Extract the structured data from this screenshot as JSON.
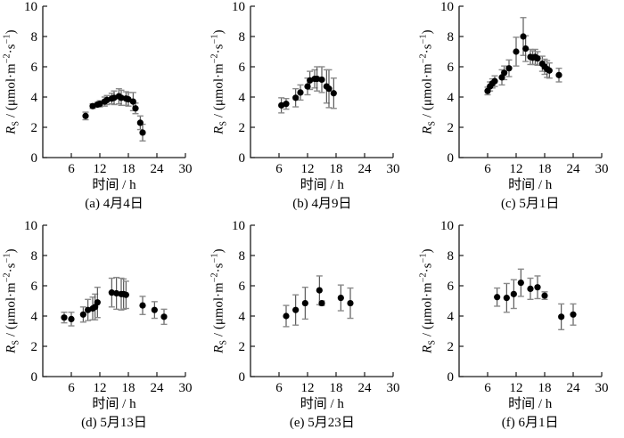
{
  "figure": {
    "background": "#ffffff",
    "axis_color": "#1a1a1a",
    "point_color": "#000000",
    "errorbar_color": "#4a4a4a",
    "errorbar_cap_color": "#8a8a8a"
  },
  "labels": {
    "xlabel": "时间 / h",
    "ylabel_text": "RS / (μmol·m−2·s−1)",
    "ylabel": {
      "var": "R",
      "var_sub": "S",
      "sep": " / (",
      "unit_a": "μmol·m",
      "exp_a": "−2",
      "unit_b": "·s",
      "exp_b": "−1",
      "close": ")"
    }
  },
  "chart_data": [
    {
      "type": "scatter",
      "panel": "a",
      "caption": "(a) 4月4日",
      "xlabel": "时间 / h",
      "ylabel": "RS / (μmol·m−2·s−1)",
      "xlim": [
        0,
        30
      ],
      "ylim": [
        0,
        10
      ],
      "xticks": [
        6,
        12,
        18,
        24,
        30
      ],
      "yticks": [
        0,
        2,
        4,
        6,
        8,
        10
      ],
      "x": [
        9,
        10.5,
        11.5,
        12,
        13,
        13.5,
        14.5,
        15,
        16,
        16.5,
        17.5,
        18,
        19,
        19.5,
        20.5,
        21
      ],
      "y": [
        2.75,
        3.4,
        3.5,
        3.55,
        3.7,
        3.8,
        3.9,
        3.95,
        4.05,
        3.95,
        3.9,
        3.85,
        3.7,
        3.25,
        2.3,
        1.65
      ],
      "yerr": [
        0.25,
        0.15,
        0.15,
        0.2,
        0.3,
        0.3,
        0.35,
        0.45,
        0.5,
        0.5,
        0.45,
        0.45,
        0.6,
        0.35,
        0.45,
        0.55
      ]
    },
    {
      "type": "scatter",
      "panel": "b",
      "caption": "(b) 4月9日",
      "xlabel": "时间 / h",
      "ylabel": "RS / (μmol·m−2·s−1)",
      "xlim": [
        0,
        30
      ],
      "ylim": [
        0,
        10
      ],
      "xticks": [
        6,
        12,
        18,
        24,
        30
      ],
      "yticks": [
        0,
        2,
        4,
        6,
        8,
        10
      ],
      "x": [
        6.5,
        7.5,
        9.5,
        10.5,
        12,
        12.5,
        13.5,
        14,
        15,
        16,
        16.5,
        17.5
      ],
      "y": [
        3.45,
        3.55,
        3.95,
        4.3,
        4.7,
        5.1,
        5.2,
        5.2,
        5.15,
        4.7,
        4.55,
        4.25
      ],
      "yerr": [
        0.5,
        0.35,
        0.6,
        0.5,
        0.55,
        0.6,
        0.6,
        0.8,
        0.85,
        1.1,
        1.25,
        1.0
      ]
    },
    {
      "type": "scatter",
      "panel": "c",
      "caption": "(c) 5月1日",
      "xlabel": "时间 / h",
      "ylabel": "RS / (μmol·m−2·s−1)",
      "xlim": [
        0,
        30
      ],
      "ylim": [
        0,
        10
      ],
      "xticks": [
        6,
        12,
        18,
        24,
        30
      ],
      "yticks": [
        0,
        2,
        4,
        6,
        8,
        10
      ],
      "x": [
        6,
        6.5,
        7,
        7.5,
        9,
        9.5,
        10.5,
        12,
        13.5,
        14,
        15,
        15.5,
        16,
        16.5,
        17.5,
        18,
        18.5,
        19,
        21
      ],
      "y": [
        4.4,
        4.7,
        4.9,
        5.05,
        5.3,
        5.6,
        5.9,
        7.0,
        8.0,
        7.2,
        6.65,
        6.6,
        6.65,
        6.55,
        6.2,
        6.0,
        5.85,
        5.75,
        5.45
      ],
      "yerr": [
        0.25,
        0.3,
        0.3,
        0.35,
        0.5,
        0.45,
        0.55,
        0.95,
        1.25,
        0.85,
        0.5,
        0.45,
        0.5,
        0.45,
        0.5,
        0.5,
        0.55,
        0.5,
        0.45
      ]
    },
    {
      "type": "scatter",
      "panel": "d",
      "caption": "(d) 5月13日",
      "xlabel": "时间 / h",
      "ylabel": "RS / (μmol·m−2·s−1)",
      "xlim": [
        0,
        30
      ],
      "ylim": [
        0,
        10
      ],
      "xticks": [
        6,
        12,
        18,
        24,
        30
      ],
      "yticks": [
        0,
        2,
        4,
        6,
        8,
        10
      ],
      "x": [
        4.5,
        6,
        8.5,
        9.5,
        10.5,
        11,
        11.5,
        14.5,
        15.5,
        16.5,
        17,
        17.5,
        21,
        23.5,
        25.5
      ],
      "y": [
        3.9,
        3.8,
        4.1,
        4.4,
        4.5,
        4.6,
        4.9,
        5.55,
        5.5,
        5.45,
        5.45,
        5.4,
        4.7,
        4.4,
        3.95
      ],
      "yerr": [
        0.35,
        0.45,
        0.5,
        0.7,
        0.75,
        0.85,
        1.0,
        0.95,
        1.05,
        1.05,
        1.0,
        0.9,
        0.6,
        0.55,
        0.5
      ]
    },
    {
      "type": "scatter",
      "panel": "e",
      "caption": "(e) 5月23日",
      "xlabel": "时间 / h",
      "ylabel": "RS / (μmol·m−2·s−1)",
      "xlim": [
        0,
        30
      ],
      "ylim": [
        0,
        10
      ],
      "xticks": [
        6,
        12,
        18,
        24,
        30
      ],
      "yticks": [
        0,
        2,
        4,
        6,
        8,
        10
      ],
      "x": [
        7.5,
        9.5,
        11.5,
        14.5,
        15,
        19,
        21
      ],
      "y": [
        4.0,
        4.4,
        4.85,
        5.7,
        4.85,
        5.2,
        4.85
      ],
      "yerr": [
        0.7,
        1.0,
        1.05,
        0.95,
        0.15,
        0.85,
        1.0
      ]
    },
    {
      "type": "scatter",
      "panel": "f",
      "caption": "(f) 6月1日",
      "xlabel": "时间 / h",
      "ylabel": "RS / (μmol·m−2·s−1)",
      "xlim": [
        0,
        30
      ],
      "ylim": [
        0,
        10
      ],
      "xticks": [
        6,
        12,
        18,
        24,
        30
      ],
      "yticks": [
        0,
        2,
        4,
        6,
        8,
        10
      ],
      "x": [
        8,
        10,
        11.5,
        13,
        15,
        16.5,
        18,
        21.5,
        24
      ],
      "y": [
        5.25,
        5.2,
        5.45,
        6.2,
        5.8,
        5.9,
        5.35,
        3.95,
        4.1
      ],
      "yerr": [
        0.6,
        0.95,
        0.95,
        0.9,
        0.7,
        0.75,
        0.25,
        0.85,
        0.7
      ]
    }
  ]
}
